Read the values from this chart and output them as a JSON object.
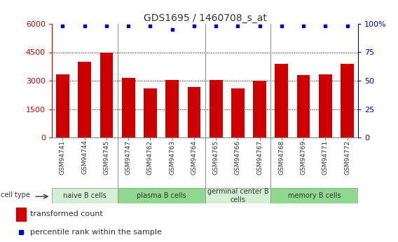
{
  "title": "GDS1695 / 1460708_s_at",
  "samples": [
    "GSM94741",
    "GSM94744",
    "GSM94745",
    "GSM94747",
    "GSM94762",
    "GSM94763",
    "GSM94764",
    "GSM94765",
    "GSM94766",
    "GSM94767",
    "GSM94768",
    "GSM94769",
    "GSM94771",
    "GSM94772"
  ],
  "transformed_counts": [
    3350,
    4000,
    4500,
    3150,
    2600,
    3050,
    2650,
    3050,
    2600,
    3000,
    3900,
    3300,
    3350,
    3900
  ],
  "percentile_ranks": [
    98,
    98,
    98,
    98,
    98,
    95,
    98,
    98,
    98,
    98,
    98,
    98,
    98,
    98
  ],
  "bar_color": "#cc0000",
  "dot_color": "#0000cc",
  "left_axis_color": "#cc0000",
  "right_axis_color": "#0000cc",
  "ylim_left": [
    0,
    6000
  ],
  "ylim_right": [
    0,
    100
  ],
  "yticks_left": [
    0,
    1500,
    3000,
    4500,
    6000
  ],
  "yticks_right": [
    0,
    25,
    50,
    75,
    100
  ],
  "cell_groups": [
    {
      "label": "naive B cells",
      "start": 0,
      "end": 3,
      "color": "#d4f0d4"
    },
    {
      "label": "plasma B cells",
      "start": 3,
      "end": 7,
      "color": "#90d890"
    },
    {
      "label": "germinal center B\ncells",
      "start": 7,
      "end": 10,
      "color": "#d4f0d4"
    },
    {
      "label": "memory B cells",
      "start": 10,
      "end": 14,
      "color": "#90d890"
    }
  ],
  "legend_bar_label": "transformed count",
  "legend_dot_label": "percentile rank within the sample",
  "cell_type_label": "cell type",
  "grid_color": "#000000",
  "bg_color": "#ffffff"
}
